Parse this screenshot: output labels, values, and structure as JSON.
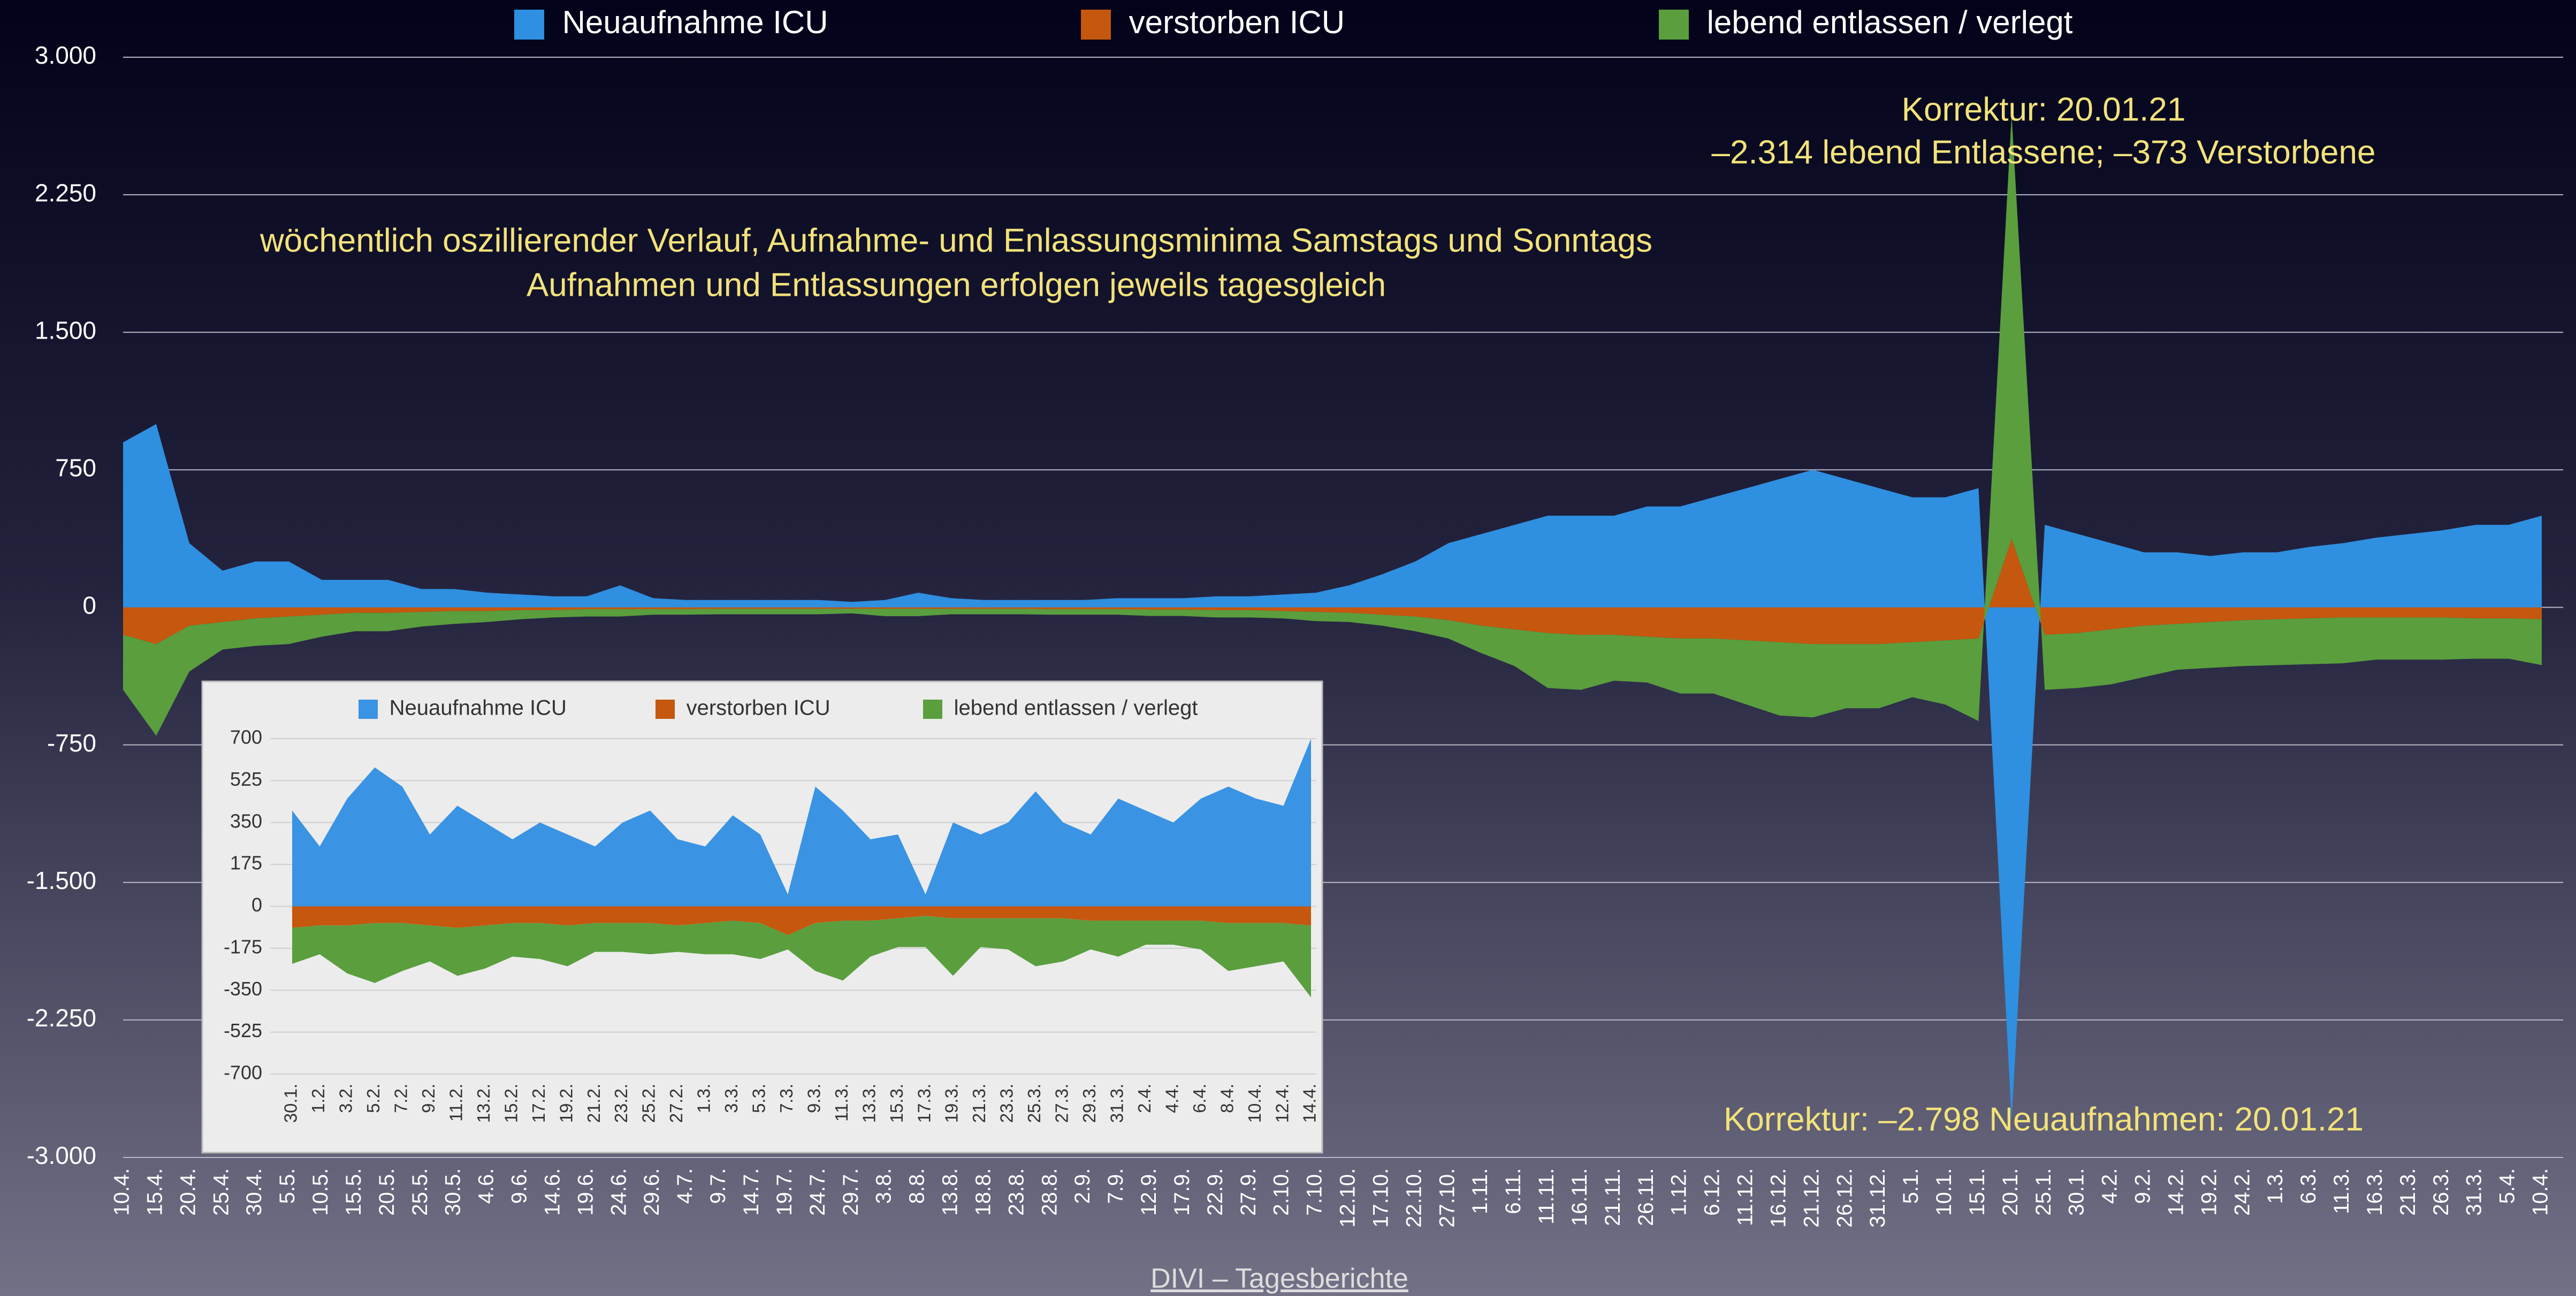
{
  "chart_data": [
    {
      "type": "area",
      "categories": [
        "10.4.",
        "15.4.",
        "20.4.",
        "25.4.",
        "30.4.",
        "5.5.",
        "10.5.",
        "15.5.",
        "20.5.",
        "25.5.",
        "30.5.",
        "4.6.",
        "9.6.",
        "14.6.",
        "19.6.",
        "24.6.",
        "29.6.",
        "4.7.",
        "9.7.",
        "14.7.",
        "19.7.",
        "24.7.",
        "29.7.",
        "3.8.",
        "8.8.",
        "13.8.",
        "18.8.",
        "23.8.",
        "28.8.",
        "2.9.",
        "7.9.",
        "12.9.",
        "17.9.",
        "22.9.",
        "27.9.",
        "2.10.",
        "7.10.",
        "12.10.",
        "17.10.",
        "22.10.",
        "27.10.",
        "1.11.",
        "6.11.",
        "11.11.",
        "16.11.",
        "21.11.",
        "26.11.",
        "1.12.",
        "6.12.",
        "11.12.",
        "16.12.",
        "21.12.",
        "26.12.",
        "31.12.",
        "5.1.",
        "10.1.",
        "15.1.",
        "20.1.",
        "25.1.",
        "30.1.",
        "4.2.",
        "9.2.",
        "14.2.",
        "19.2.",
        "24.2.",
        "1.3.",
        "6.3.",
        "11.3.",
        "16.3.",
        "21.3.",
        "26.3.",
        "31.3.",
        "5.4.",
        "10.4."
      ],
      "series": [
        {
          "name": "Neuaufnahme ICU",
          "color": "#2f8fe0",
          "values": [
            900,
            1000,
            350,
            200,
            250,
            250,
            150,
            150,
            150,
            100,
            100,
            80,
            70,
            60,
            60,
            120,
            50,
            40,
            40,
            40,
            40,
            40,
            30,
            40,
            80,
            50,
            40,
            40,
            40,
            40,
            50,
            50,
            50,
            60,
            60,
            70,
            80,
            120,
            180,
            250,
            350,
            400,
            450,
            500,
            500,
            500,
            550,
            550,
            600,
            650,
            700,
            750,
            700,
            650,
            600,
            600,
            650,
            -2798,
            450,
            400,
            350,
            300,
            300,
            280,
            300,
            300,
            330,
            350,
            380,
            400,
            420,
            450,
            450,
            500
          ]
        },
        {
          "name": "verstorben ICU",
          "color": "#c6570f",
          "values": [
            -150,
            -200,
            -100,
            -80,
            -60,
            -50,
            -40,
            -30,
            -30,
            -25,
            -20,
            -20,
            -15,
            -15,
            -10,
            -10,
            -10,
            -10,
            -8,
            -8,
            -8,
            -8,
            -8,
            -8,
            -8,
            -8,
            -8,
            -8,
            -10,
            -10,
            -10,
            -12,
            -12,
            -15,
            -15,
            -20,
            -25,
            -30,
            -40,
            -50,
            -70,
            -100,
            -120,
            -140,
            -150,
            -150,
            -160,
            -170,
            -170,
            -180,
            -190,
            -200,
            -200,
            -200,
            -190,
            -180,
            -170,
            373,
            -150,
            -140,
            -120,
            -100,
            -90,
            -80,
            -70,
            -65,
            -60,
            -55,
            -55,
            -55,
            -55,
            -60,
            -60,
            -65
          ]
        },
        {
          "name": "lebend entlassen / verlegt",
          "color": "#5a9e3e",
          "values": [
            -300,
            -500,
            -250,
            -150,
            -150,
            -150,
            -120,
            -100,
            -100,
            -80,
            -70,
            -60,
            -50,
            -40,
            -40,
            -40,
            -30,
            -30,
            -30,
            -30,
            -30,
            -30,
            -25,
            -40,
            -40,
            -30,
            -30,
            -30,
            -30,
            -30,
            -30,
            -35,
            -35,
            -40,
            -40,
            -40,
            -50,
            -50,
            -60,
            -80,
            -100,
            -150,
            -200,
            -300,
            -300,
            -250,
            -250,
            -300,
            -300,
            -350,
            -400,
            -400,
            -350,
            -350,
            -300,
            -350,
            -450,
            2314,
            -300,
            -300,
            -300,
            -280,
            -250,
            -250,
            -250,
            -250,
            -250,
            -250,
            -230,
            -230,
            -230,
            -220,
            -220,
            -250
          ]
        }
      ],
      "stacked": true,
      "ylim": [
        -3000,
        3000
      ],
      "yticks": [
        {
          "value": 3000,
          "label": "3.000"
        },
        {
          "value": 2250,
          "label": "2.250"
        },
        {
          "value": 1500,
          "label": "1.500"
        },
        750,
        0,
        -750,
        {
          "value": -1500,
          "label": "-1.500"
        },
        {
          "value": -2250,
          "label": "-2.250"
        },
        {
          "value": -3000,
          "label": "-3.000"
        }
      ],
      "grid": true,
      "legend": "top",
      "annotations": [
        "Korrektur: 20.01.21",
        "–2.314 lebend Entlassene; –373 Verstorbene",
        "wöchentlich oszillierender Verlauf, Aufnahme- und Enlassungsminima Samstags und Sonntags",
        "Aufnahmen und Entlassungen erfolgen jeweils tagesgleich",
        "Korrektur: –2.798 Neuaufnahmen: 20.01.21"
      ],
      "source": "DIVI – Tagesberichte"
    },
    {
      "type": "area",
      "categories": [
        "30.1.",
        "1.2.",
        "3.2.",
        "5.2.",
        "7.2.",
        "9.2.",
        "11.2.",
        "13.2.",
        "15.2.",
        "17.2.",
        "19.2.",
        "21.2.",
        "23.2.",
        "25.2.",
        "27.2.",
        "1.3.",
        "3.3.",
        "5.3.",
        "7.3.",
        "9.3.",
        "11.3.",
        "13.3.",
        "15.3.",
        "17.3.",
        "19.3.",
        "21.3.",
        "23.3.",
        "25.3.",
        "27.3.",
        "29.3.",
        "31.3.",
        "2.4.",
        "4.4.",
        "6.4.",
        "8.4.",
        "10.4.",
        "12.4.",
        "14.4."
      ],
      "series": [
        {
          "name": "Neuaufnahme ICU",
          "color": "#3a93e3",
          "values": [
            400,
            250,
            450,
            580,
            500,
            300,
            420,
            350,
            280,
            350,
            300,
            250,
            350,
            400,
            280,
            250,
            380,
            300,
            50,
            500,
            400,
            280,
            300,
            50,
            350,
            300,
            350,
            480,
            350,
            300,
            450,
            400,
            350,
            450,
            500,
            450,
            420,
            700
          ]
        },
        {
          "name": "verstorben ICU",
          "color": "#c6570f",
          "values": [
            -90,
            -80,
            -80,
            -70,
            -70,
            -80,
            -90,
            -80,
            -70,
            -70,
            -80,
            -70,
            -70,
            -70,
            -80,
            -70,
            -60,
            -70,
            -120,
            -70,
            -60,
            -60,
            -50,
            -40,
            -50,
            -50,
            -50,
            -50,
            -50,
            -60,
            -60,
            -60,
            -60,
            -60,
            -70,
            -70,
            -70,
            -80
          ]
        },
        {
          "name": "lebend entlassen / verlegt",
          "color": "#5a9e3e",
          "values": [
            -150,
            -120,
            -200,
            -250,
            -200,
            -150,
            -200,
            -180,
            -140,
            -150,
            -170,
            -120,
            -120,
            -130,
            -110,
            -130,
            -140,
            -150,
            -60,
            -200,
            -250,
            -150,
            -120,
            -130,
            -240,
            -120,
            -130,
            -200,
            -180,
            -120,
            -150,
            -100,
            -100,
            -120,
            -200,
            -180,
            -160,
            -300
          ]
        }
      ],
      "stacked": true,
      "ylim": [
        -700,
        700
      ],
      "yticks": [
        700,
        525,
        350,
        175,
        0,
        -175,
        -350,
        -525,
        -700
      ],
      "grid": true,
      "legend": "top"
    }
  ]
}
